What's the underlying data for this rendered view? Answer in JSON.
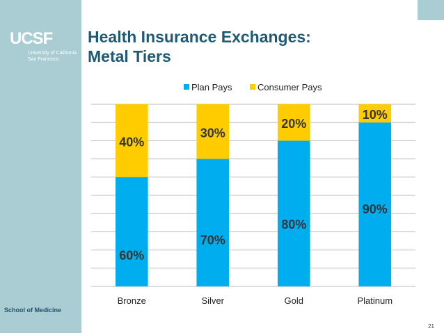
{
  "slide": {
    "title_line1": "Health Insurance Exchanges:",
    "title_line2": "Metal Tiers",
    "school": "School of Medicine",
    "page_number": "21",
    "logo_mark": "UCSF",
    "logo_sub1": "University of California",
    "logo_sub2": "San Francisco"
  },
  "colors": {
    "plan": "#00aeef",
    "consumer": "#ffcc00",
    "band": "#a9cdd2",
    "title": "#1e5a74"
  },
  "chart_data": {
    "type": "bar",
    "stacked": true,
    "categories": [
      "Bronze",
      "Silver",
      "Gold",
      "Platinum"
    ],
    "series": [
      {
        "name": "Plan Pays",
        "values": [
          60,
          70,
          80,
          90
        ],
        "labels": [
          "60%",
          "70%",
          "80%",
          "90%"
        ]
      },
      {
        "name": "Consumer Pays",
        "values": [
          40,
          30,
          20,
          10
        ],
        "labels": [
          "40%",
          "30%",
          "20%",
          "10%"
        ]
      }
    ],
    "ylim": [
      0,
      100
    ],
    "grid": true,
    "legend": "top"
  }
}
